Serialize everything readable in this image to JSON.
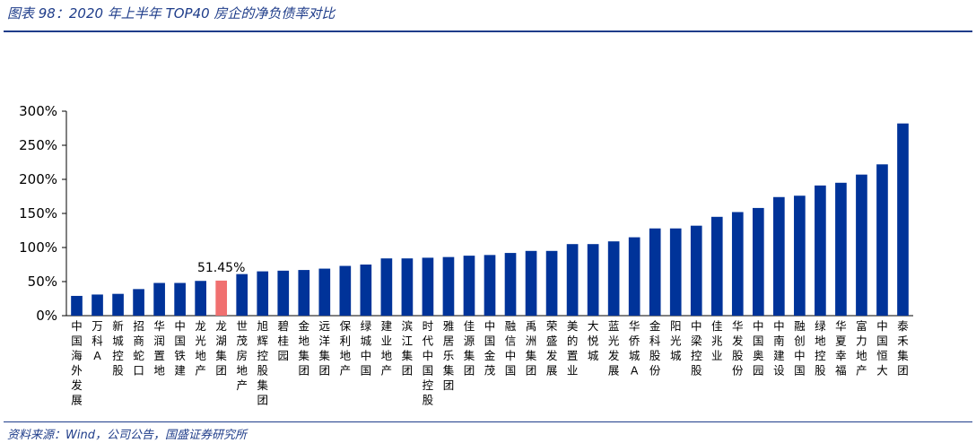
{
  "header": {
    "title": "图表 98：2020 年上半年 TOP40 房企的净负债率对比"
  },
  "footer": {
    "source": "资料来源：Wind，公司公告，国盛证券研究所"
  },
  "colors": {
    "bar": "#003399",
    "highlight": "#f07070",
    "rule": "#1f3d8a"
  },
  "chart_data": {
    "type": "bar",
    "categories": [
      "中国海外发展",
      "万科A",
      "新城控股",
      "招商蛇口",
      "华润置地",
      "中国铁建",
      "龙光地产",
      "龙湖集团",
      "世茂房地产",
      "旭辉控股集团",
      "碧桂园",
      "金地集团",
      "远洋集团",
      "保利地产",
      "绿城中国",
      "建业地产",
      "滨江集团",
      "时代中国控股",
      "雅居乐集团",
      "佳源集团",
      "中国金茂",
      "融信中国",
      "禹洲集团",
      "荣盛发展",
      "美的置业",
      "大悦城",
      "蓝光发展",
      "华侨城A",
      "金科股份",
      "阳光城",
      "中梁控股",
      "佳兆业",
      "华发股份",
      "中国奥园",
      "中南建设",
      "融创中国",
      "绿地控股",
      "华夏幸福",
      "富力地产",
      "中国恒大",
      "泰禾集团"
    ],
    "values": [
      29,
      31,
      32,
      39,
      48,
      48,
      51,
      51.45,
      61,
      65,
      66,
      67,
      69,
      73,
      75,
      84,
      84,
      85,
      86,
      88,
      89,
      92,
      95,
      95,
      105,
      105,
      109,
      115,
      128,
      128,
      132,
      145,
      152,
      158,
      174,
      176,
      191,
      195,
      207,
      222,
      282
    ],
    "highlight_category": "龙湖集团",
    "annotation": "51.45%",
    "ylim": [
      0,
      300
    ],
    "yticks": [
      "0%",
      "50%",
      "100%",
      "150%",
      "200%",
      "250%",
      "300%"
    ],
    "ytick_values": [
      0,
      50,
      100,
      150,
      200,
      250,
      300
    ],
    "grid": false,
    "legend": "none",
    "xlabel": "",
    "ylabel": ""
  }
}
